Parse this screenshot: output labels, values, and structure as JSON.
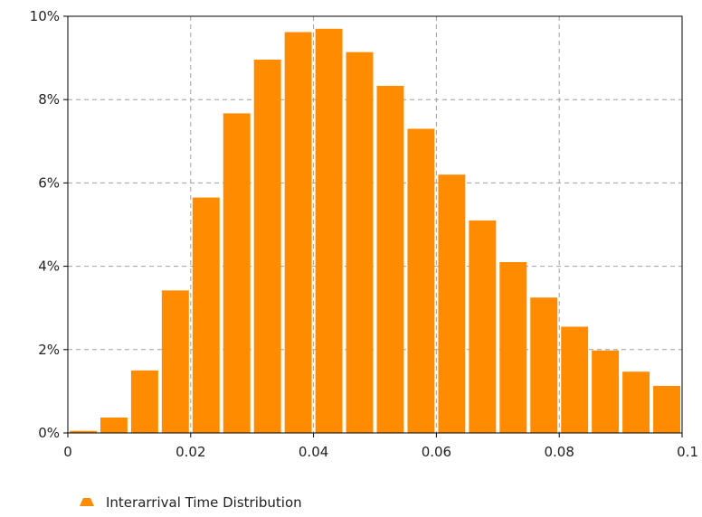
{
  "chart_data": {
    "type": "bar",
    "series": [
      {
        "name": "Interarrival Time Distribution",
        "bins": [
          {
            "x0": 0.0,
            "x1": 0.005,
            "value": 0.05
          },
          {
            "x0": 0.005,
            "x1": 0.01,
            "value": 0.37
          },
          {
            "x0": 0.01,
            "x1": 0.015,
            "value": 1.5
          },
          {
            "x0": 0.015,
            "x1": 0.02,
            "value": 3.42
          },
          {
            "x0": 0.02,
            "x1": 0.025,
            "value": 5.65
          },
          {
            "x0": 0.025,
            "x1": 0.03,
            "value": 7.67
          },
          {
            "x0": 0.03,
            "x1": 0.035,
            "value": 8.96
          },
          {
            "x0": 0.035,
            "x1": 0.04,
            "value": 9.62
          },
          {
            "x0": 0.04,
            "x1": 0.045,
            "value": 9.7
          },
          {
            "x0": 0.045,
            "x1": 0.05,
            "value": 9.14
          },
          {
            "x0": 0.05,
            "x1": 0.055,
            "value": 8.33
          },
          {
            "x0": 0.055,
            "x1": 0.06,
            "value": 7.3
          },
          {
            "x0": 0.06,
            "x1": 0.065,
            "value": 6.2
          },
          {
            "x0": 0.065,
            "x1": 0.07,
            "value": 5.1
          },
          {
            "x0": 0.07,
            "x1": 0.075,
            "value": 4.1
          },
          {
            "x0": 0.075,
            "x1": 0.08,
            "value": 3.25
          },
          {
            "x0": 0.08,
            "x1": 0.085,
            "value": 2.55
          },
          {
            "x0": 0.085,
            "x1": 0.09,
            "value": 1.98
          },
          {
            "x0": 0.09,
            "x1": 0.095,
            "value": 1.47
          },
          {
            "x0": 0.095,
            "x1": 0.1,
            "value": 1.13
          }
        ]
      }
    ],
    "x_ticks": [
      "0",
      "0.02",
      "0.04",
      "0.06",
      "0.08",
      "0.1"
    ],
    "x_tick_values": [
      0,
      0.02,
      0.04,
      0.06,
      0.08,
      0.1
    ],
    "y_ticks": [
      "0%",
      "2%",
      "4%",
      "6%",
      "8%",
      "10%"
    ],
    "y_tick_values": [
      0,
      2,
      4,
      6,
      8,
      10
    ],
    "xlim": [
      0,
      0.1
    ],
    "ylim": [
      0,
      10
    ],
    "grid": true,
    "legend_position": "bottom-left",
    "bar_color": "#ff8c00",
    "grid_color": "#a0a0a0",
    "axis_color": "#000000"
  }
}
